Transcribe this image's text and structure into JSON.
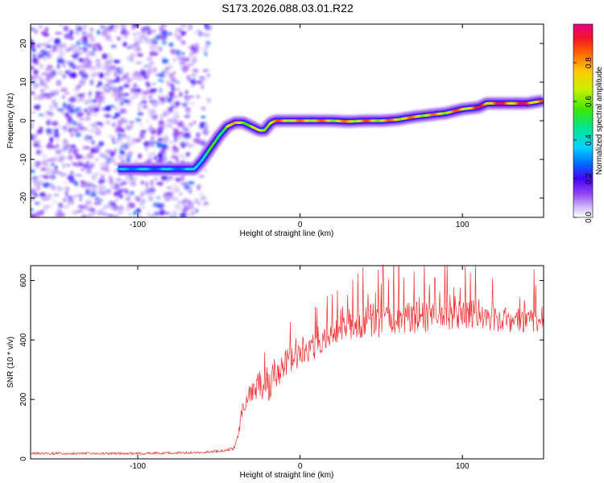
{
  "title": "S173.2026.088.03.01.R22",
  "chart_data": [
    {
      "type": "heatmap",
      "xlabel": "Height of straight line (km)",
      "ylabel": "Frequency (Hz)",
      "xlim": [
        -166,
        150
      ],
      "ylim": [
        -25,
        25
      ],
      "xticks": [
        -100,
        0,
        100
      ],
      "yticks": [
        -20,
        -10,
        0,
        10,
        20
      ],
      "colorbar": {
        "label": "Normalized spectral amplitude",
        "range": [
          0,
          1
        ],
        "ticks": [
          0.0,
          0.2,
          0.4,
          0.6,
          0.8
        ]
      },
      "noise_region_x": [
        -166,
        -55
      ],
      "ridge": {
        "x": [
          -166,
          -145,
          -130,
          -120,
          -110,
          -100,
          -90,
          -80,
          -70,
          -65,
          -60,
          -55,
          -50,
          -45,
          -40,
          -35,
          -30,
          -25,
          -22,
          -18,
          -15,
          -10,
          -5,
          0,
          10,
          20,
          30,
          40,
          50,
          60,
          70,
          80,
          90,
          100,
          110,
          115,
          120,
          130,
          140,
          150
        ],
        "freq": [
          -12.5,
          -12.5,
          -12.5,
          -12.5,
          -12.5,
          -12.5,
          -12.5,
          -12.5,
          -12.5,
          -12.5,
          -10,
          -7,
          -4,
          -1.5,
          -0.5,
          -0.5,
          -1.5,
          -2.5,
          -2.5,
          -0.5,
          0,
          0,
          0,
          0,
          0,
          0,
          -0.2,
          0,
          0,
          0.3,
          1,
          1.5,
          2,
          3,
          3.5,
          4.5,
          4.5,
          4.5,
          4.5,
          5.2
        ],
        "amplitude": [
          0.0,
          0.2,
          0.3,
          0.35,
          0.35,
          0.4,
          0.35,
          0.4,
          0.35,
          0.45,
          0.5,
          0.55,
          0.6,
          0.75,
          0.8,
          0.85,
          0.7,
          0.7,
          0.8,
          0.85,
          0.85,
          0.9,
          0.9,
          0.85,
          0.9,
          0.85,
          0.85,
          0.9,
          0.85,
          0.9,
          0.85,
          0.85,
          0.85,
          0.9,
          0.95,
          1.0,
          1.0,
          1.0,
          1.0,
          0.95
        ]
      }
    },
    {
      "type": "line",
      "xlabel": "Height of straight line (km)",
      "ylabel": "SNR (10 * v/v)",
      "xlim": [
        -166,
        150
      ],
      "ylim": [
        0,
        650
      ],
      "xticks": [
        -100,
        0,
        100
      ],
      "yticks": [
        0,
        200,
        400,
        600
      ],
      "series": [
        {
          "name": "SNR",
          "color": "#ef3030",
          "x": [
            -166,
            -140,
            -120,
            -100,
            -80,
            -60,
            -45,
            -40,
            -37,
            -35,
            -30,
            -25,
            -20,
            -15,
            -10,
            -5,
            0,
            5,
            10,
            15,
            20,
            25,
            30,
            35,
            40,
            50,
            60,
            70,
            80,
            90,
            100,
            110,
            112,
            120,
            130,
            140,
            150
          ],
          "y": [
            18,
            18,
            18,
            18,
            20,
            22,
            28,
            40,
            100,
            190,
            230,
            250,
            250,
            270,
            310,
            330,
            360,
            370,
            380,
            400,
            420,
            430,
            440,
            450,
            460,
            465,
            470,
            475,
            480,
            480,
            480,
            485,
            470,
            470,
            470,
            470,
            470
          ],
          "spread": [
            8,
            8,
            8,
            8,
            8,
            8,
            8,
            14,
            50,
            70,
            90,
            100,
            120,
            110,
            100,
            100,
            100,
            90,
            90,
            90,
            90,
            90,
            90,
            110,
            120,
            110,
            110,
            110,
            110,
            100,
            100,
            110,
            90,
            90,
            90,
            90,
            90
          ]
        }
      ]
    }
  ]
}
